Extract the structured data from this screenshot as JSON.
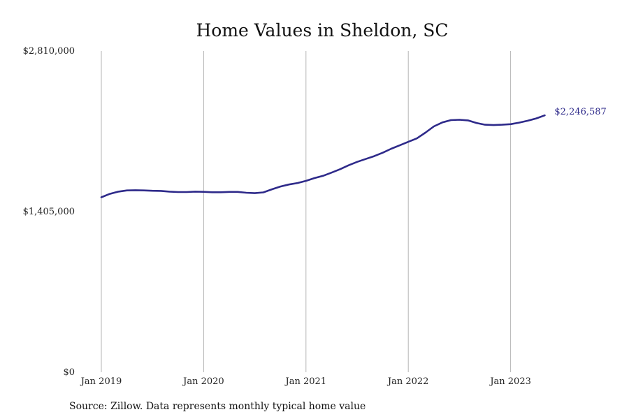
{
  "chart_data": {
    "type": "line",
    "title": "Home Values in Sheldon, SC",
    "xlabel": "",
    "ylabel": "",
    "xlim": [
      "2019-01",
      "2024-03"
    ],
    "ylim": [
      0,
      2810000
    ],
    "grid": "vertical",
    "line_color": "#2e2a8a",
    "y_ticks": [
      {
        "value": 0,
        "label": "$0"
      },
      {
        "value": 1405000,
        "label": "$1,405,000"
      },
      {
        "value": 2810000,
        "label": "$2,810,000"
      }
    ],
    "x_ticks": [
      {
        "value": "2019-01",
        "label": "Jan 2019"
      },
      {
        "value": "2020-01",
        "label": "Jan 2020"
      },
      {
        "value": "2021-01",
        "label": "Jan 2021"
      },
      {
        "value": "2022-01",
        "label": "Jan 2022"
      },
      {
        "value": "2023-01",
        "label": "Jan 2023"
      }
    ],
    "end_label": "$2,246,587",
    "series": [
      {
        "x": [
          "2019-01",
          "2019-02",
          "2019-03",
          "2019-04",
          "2019-05",
          "2019-06",
          "2019-07",
          "2019-08",
          "2019-09",
          "2019-10",
          "2019-11",
          "2019-12",
          "2020-01",
          "2020-02",
          "2020-03",
          "2020-04",
          "2020-05",
          "2020-06",
          "2020-07",
          "2020-08",
          "2020-09",
          "2020-10",
          "2020-11",
          "2020-12",
          "2021-01",
          "2021-02",
          "2021-03",
          "2021-04",
          "2021-05",
          "2021-06",
          "2021-07",
          "2021-08",
          "2021-09",
          "2021-10",
          "2021-11",
          "2021-12",
          "2022-01",
          "2022-02",
          "2022-03",
          "2022-04",
          "2022-05",
          "2022-06",
          "2022-07",
          "2022-08",
          "2022-09",
          "2022-10",
          "2022-11",
          "2022-12",
          "2023-01",
          "2023-02",
          "2023-03",
          "2023-04",
          "2023-05"
        ],
        "values": [
          1530000,
          1560000,
          1580000,
          1590000,
          1592000,
          1590000,
          1587000,
          1586000,
          1580000,
          1576000,
          1576000,
          1580000,
          1578000,
          1574000,
          1574000,
          1577000,
          1577000,
          1570000,
          1566000,
          1573000,
          1600000,
          1624000,
          1642000,
          1655000,
          1674000,
          1698000,
          1718000,
          1746000,
          1776000,
          1810000,
          1840000,
          1865000,
          1890000,
          1920000,
          1955000,
          1985000,
          2015000,
          2045000,
          2095000,
          2150000,
          2185000,
          2205000,
          2208000,
          2203000,
          2180000,
          2165000,
          2162000,
          2165000,
          2170000,
          2183000,
          2200000,
          2220000,
          2246587
        ]
      }
    ]
  },
  "footer": {
    "source": "Source: Zillow. Data represents monthly typical home value"
  }
}
